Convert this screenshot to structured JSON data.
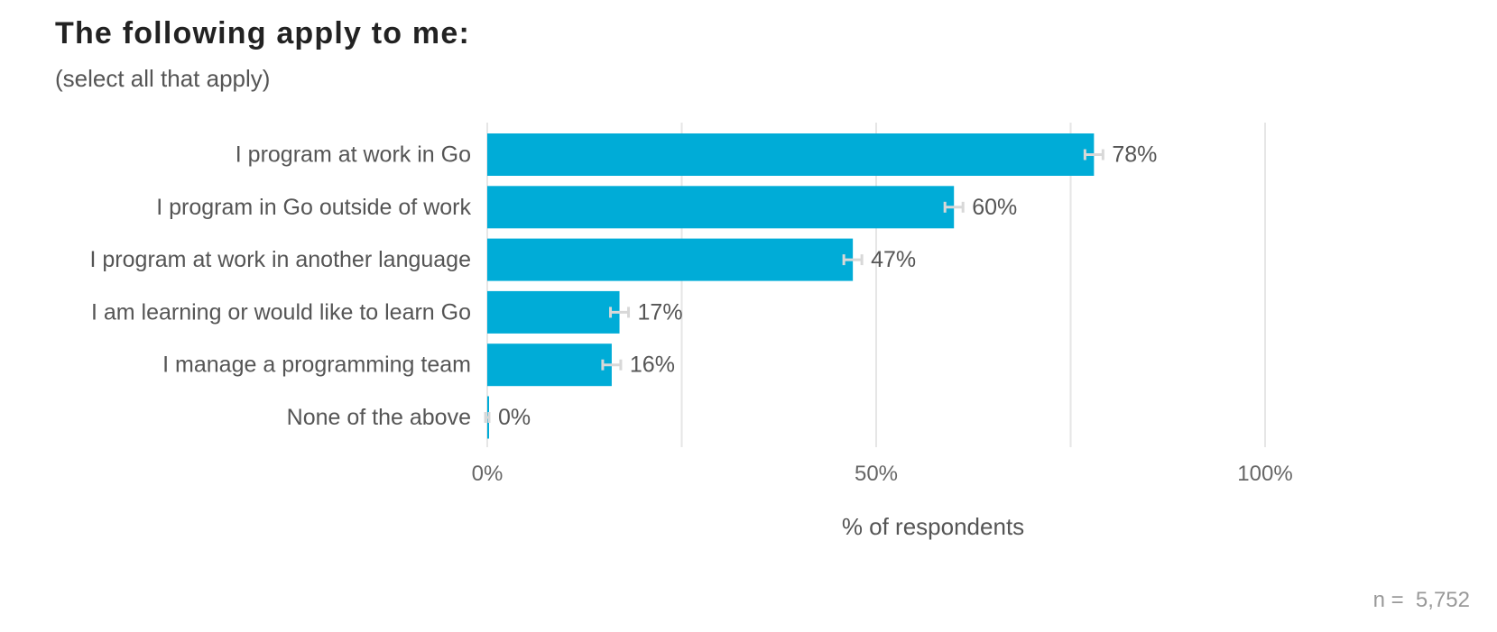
{
  "chart_data": {
    "type": "bar",
    "orientation": "horizontal",
    "title": "The following apply to me:",
    "subtitle": "(select all that apply)",
    "categories": [
      "I program at work in Go",
      "I program in Go outside of work",
      "I program at work in another language",
      "I am learning or would like to learn Go",
      "I manage a programming team",
      "None of the above"
    ],
    "values": [
      78,
      60,
      47,
      17,
      16,
      0
    ],
    "value_labels": [
      "78%",
      "60%",
      "47%",
      "17%",
      "16%",
      "0%"
    ],
    "error_bars": true,
    "xlabel": "% of respondents",
    "xlim": [
      0,
      100
    ],
    "x_ticks": [
      0,
      50,
      100
    ],
    "x_tick_labels": [
      "0%",
      "50%",
      "100%"
    ],
    "grid": true,
    "legend": "none",
    "sample_size": "n =  5,752",
    "colors": {
      "bar": "#00acd7",
      "error_bar": "#d8d8d8",
      "grid": "#e6e6e6"
    }
  }
}
